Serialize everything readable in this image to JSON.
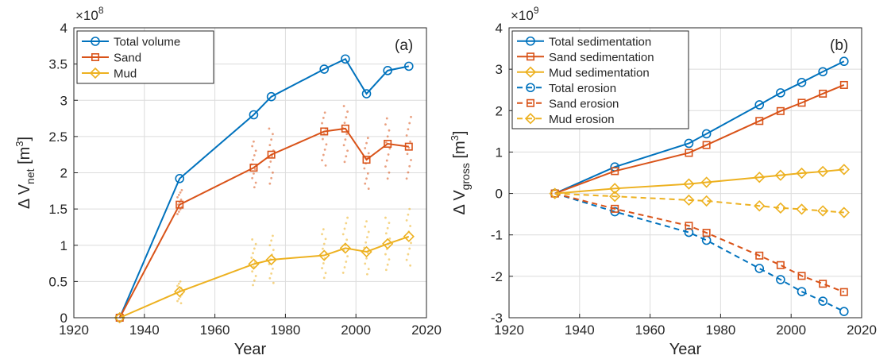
{
  "chart_data": [
    {
      "type": "line",
      "panel_label": "(a)",
      "xlabel": "Year",
      "ylabel": {
        "main": "Δ V",
        "sub": "net",
        "unit_pre": " [m",
        "unit_sup": "3",
        "unit_post": "]"
      },
      "y_multiplier": {
        "base": "×10",
        "exp": "8"
      },
      "xlim": [
        1920,
        2020
      ],
      "ylim": [
        0,
        4
      ],
      "xticks": [
        1920,
        1940,
        1960,
        1980,
        2000,
        2020
      ],
      "yticks": [
        0,
        0.5,
        1,
        1.5,
        2,
        2.5,
        3,
        3.5,
        4
      ],
      "ytick_labels": [
        "0",
        "0.5",
        "1",
        "1.5",
        "2",
        "2.5",
        "3",
        "3.5",
        "4"
      ],
      "grid": true,
      "legend_position": "top-left",
      "series": [
        {
          "name": "Total volume",
          "marker": "circle",
          "style": "solid",
          "color": "#0072BD",
          "x": [
            1933,
            1950,
            1971,
            1976,
            1991,
            1997,
            2003,
            2009,
            2015
          ],
          "y": [
            0,
            1.92,
            2.8,
            3.05,
            3.43,
            3.57,
            3.09,
            3.41,
            3.47
          ]
        },
        {
          "name": "Sand",
          "marker": "square",
          "style": "solid",
          "color": "#D95319",
          "x": [
            1933,
            1950,
            1971,
            1976,
            1991,
            1997,
            2003,
            2009,
            2015
          ],
          "y": [
            0,
            1.56,
            2.07,
            2.25,
            2.57,
            2.61,
            2.18,
            2.4,
            2.36
          ]
        },
        {
          "name": "Mud",
          "marker": "diamond",
          "style": "solid",
          "color": "#EDB120",
          "x": [
            1933,
            1950,
            1971,
            1976,
            1991,
            1997,
            2003,
            2009,
            2015
          ],
          "y": [
            0,
            0.36,
            0.74,
            0.8,
            0.86,
            0.96,
            0.91,
            1.02,
            1.12
          ]
        }
      ],
      "scatter_ranges": [
        {
          "color": "#D95319",
          "x": [
            1950,
            1971,
            1976,
            1991,
            1997,
            2003,
            2009,
            2015
          ],
          "ymin": [
            1.43,
            1.8,
            1.85,
            2.1,
            2.15,
            1.78,
            1.92,
            1.92
          ],
          "ymax": [
            1.76,
            2.43,
            2.61,
            2.83,
            2.92,
            2.48,
            2.75,
            2.77
          ]
        },
        {
          "color": "#EDB120",
          "x": [
            1950,
            1971,
            1976,
            1991,
            1997,
            2003,
            2009,
            2015
          ],
          "ymin": [
            0.2,
            0.45,
            0.48,
            0.55,
            0.62,
            0.6,
            0.66,
            0.72
          ],
          "ymax": [
            0.5,
            1.08,
            1.13,
            1.22,
            1.38,
            1.33,
            1.38,
            1.5
          ]
        }
      ]
    },
    {
      "type": "line",
      "panel_label": "(b)",
      "xlabel": "Year",
      "ylabel": {
        "main": "Δ V",
        "sub": "gross",
        "unit_pre": " [m",
        "unit_sup": "3",
        "unit_post": "]"
      },
      "y_multiplier": {
        "base": "×10",
        "exp": "9"
      },
      "xlim": [
        1920,
        2020
      ],
      "ylim": [
        -3,
        4
      ],
      "xticks": [
        1920,
        1940,
        1960,
        1980,
        2000,
        2020
      ],
      "yticks": [
        -3,
        -2,
        -1,
        0,
        1,
        2,
        3,
        4
      ],
      "ytick_labels": [
        "-3",
        "-2",
        "-1",
        "0",
        "1",
        "2",
        "3",
        "4"
      ],
      "grid": true,
      "legend_position": "top-left",
      "series": [
        {
          "name": "Total sedimentation",
          "marker": "circle",
          "style": "solid",
          "color": "#0072BD",
          "x": [
            1933,
            1950,
            1971,
            1976,
            1991,
            1997,
            2003,
            2009,
            2015
          ],
          "y": [
            0,
            0.64,
            1.21,
            1.44,
            2.14,
            2.43,
            2.68,
            2.94,
            3.19
          ]
        },
        {
          "name": "Sand sedimentation",
          "marker": "square",
          "style": "solid",
          "color": "#D95319",
          "x": [
            1933,
            1950,
            1971,
            1976,
            1991,
            1997,
            2003,
            2009,
            2015
          ],
          "y": [
            0,
            0.54,
            0.98,
            1.17,
            1.75,
            1.99,
            2.19,
            2.41,
            2.62
          ]
        },
        {
          "name": "Mud sedimentation",
          "marker": "diamond",
          "style": "solid",
          "color": "#EDB120",
          "x": [
            1933,
            1950,
            1971,
            1976,
            1991,
            1997,
            2003,
            2009,
            2015
          ],
          "y": [
            0,
            0.12,
            0.23,
            0.27,
            0.39,
            0.44,
            0.49,
            0.53,
            0.58
          ]
        },
        {
          "name": "Total erosion",
          "marker": "circle",
          "style": "dashed",
          "color": "#0072BD",
          "x": [
            1933,
            1950,
            1971,
            1976,
            1991,
            1997,
            2003,
            2009,
            2015
          ],
          "y": [
            0,
            -0.44,
            -0.94,
            -1.13,
            -1.81,
            -2.08,
            -2.37,
            -2.6,
            -2.85
          ]
        },
        {
          "name": "Sand erosion",
          "marker": "square",
          "style": "dashed",
          "color": "#D95319",
          "x": [
            1933,
            1950,
            1971,
            1976,
            1991,
            1997,
            2003,
            2009,
            2015
          ],
          "y": [
            0,
            -0.37,
            -0.78,
            -0.95,
            -1.5,
            -1.73,
            -1.99,
            -2.18,
            -2.38
          ]
        },
        {
          "name": "Mud erosion",
          "marker": "diamond",
          "style": "dashed",
          "color": "#EDB120",
          "x": [
            1933,
            1950,
            1971,
            1976,
            1991,
            1997,
            2003,
            2009,
            2015
          ],
          "y": [
            0,
            -0.07,
            -0.16,
            -0.18,
            -0.3,
            -0.35,
            -0.38,
            -0.42,
            -0.46
          ]
        }
      ]
    }
  ]
}
